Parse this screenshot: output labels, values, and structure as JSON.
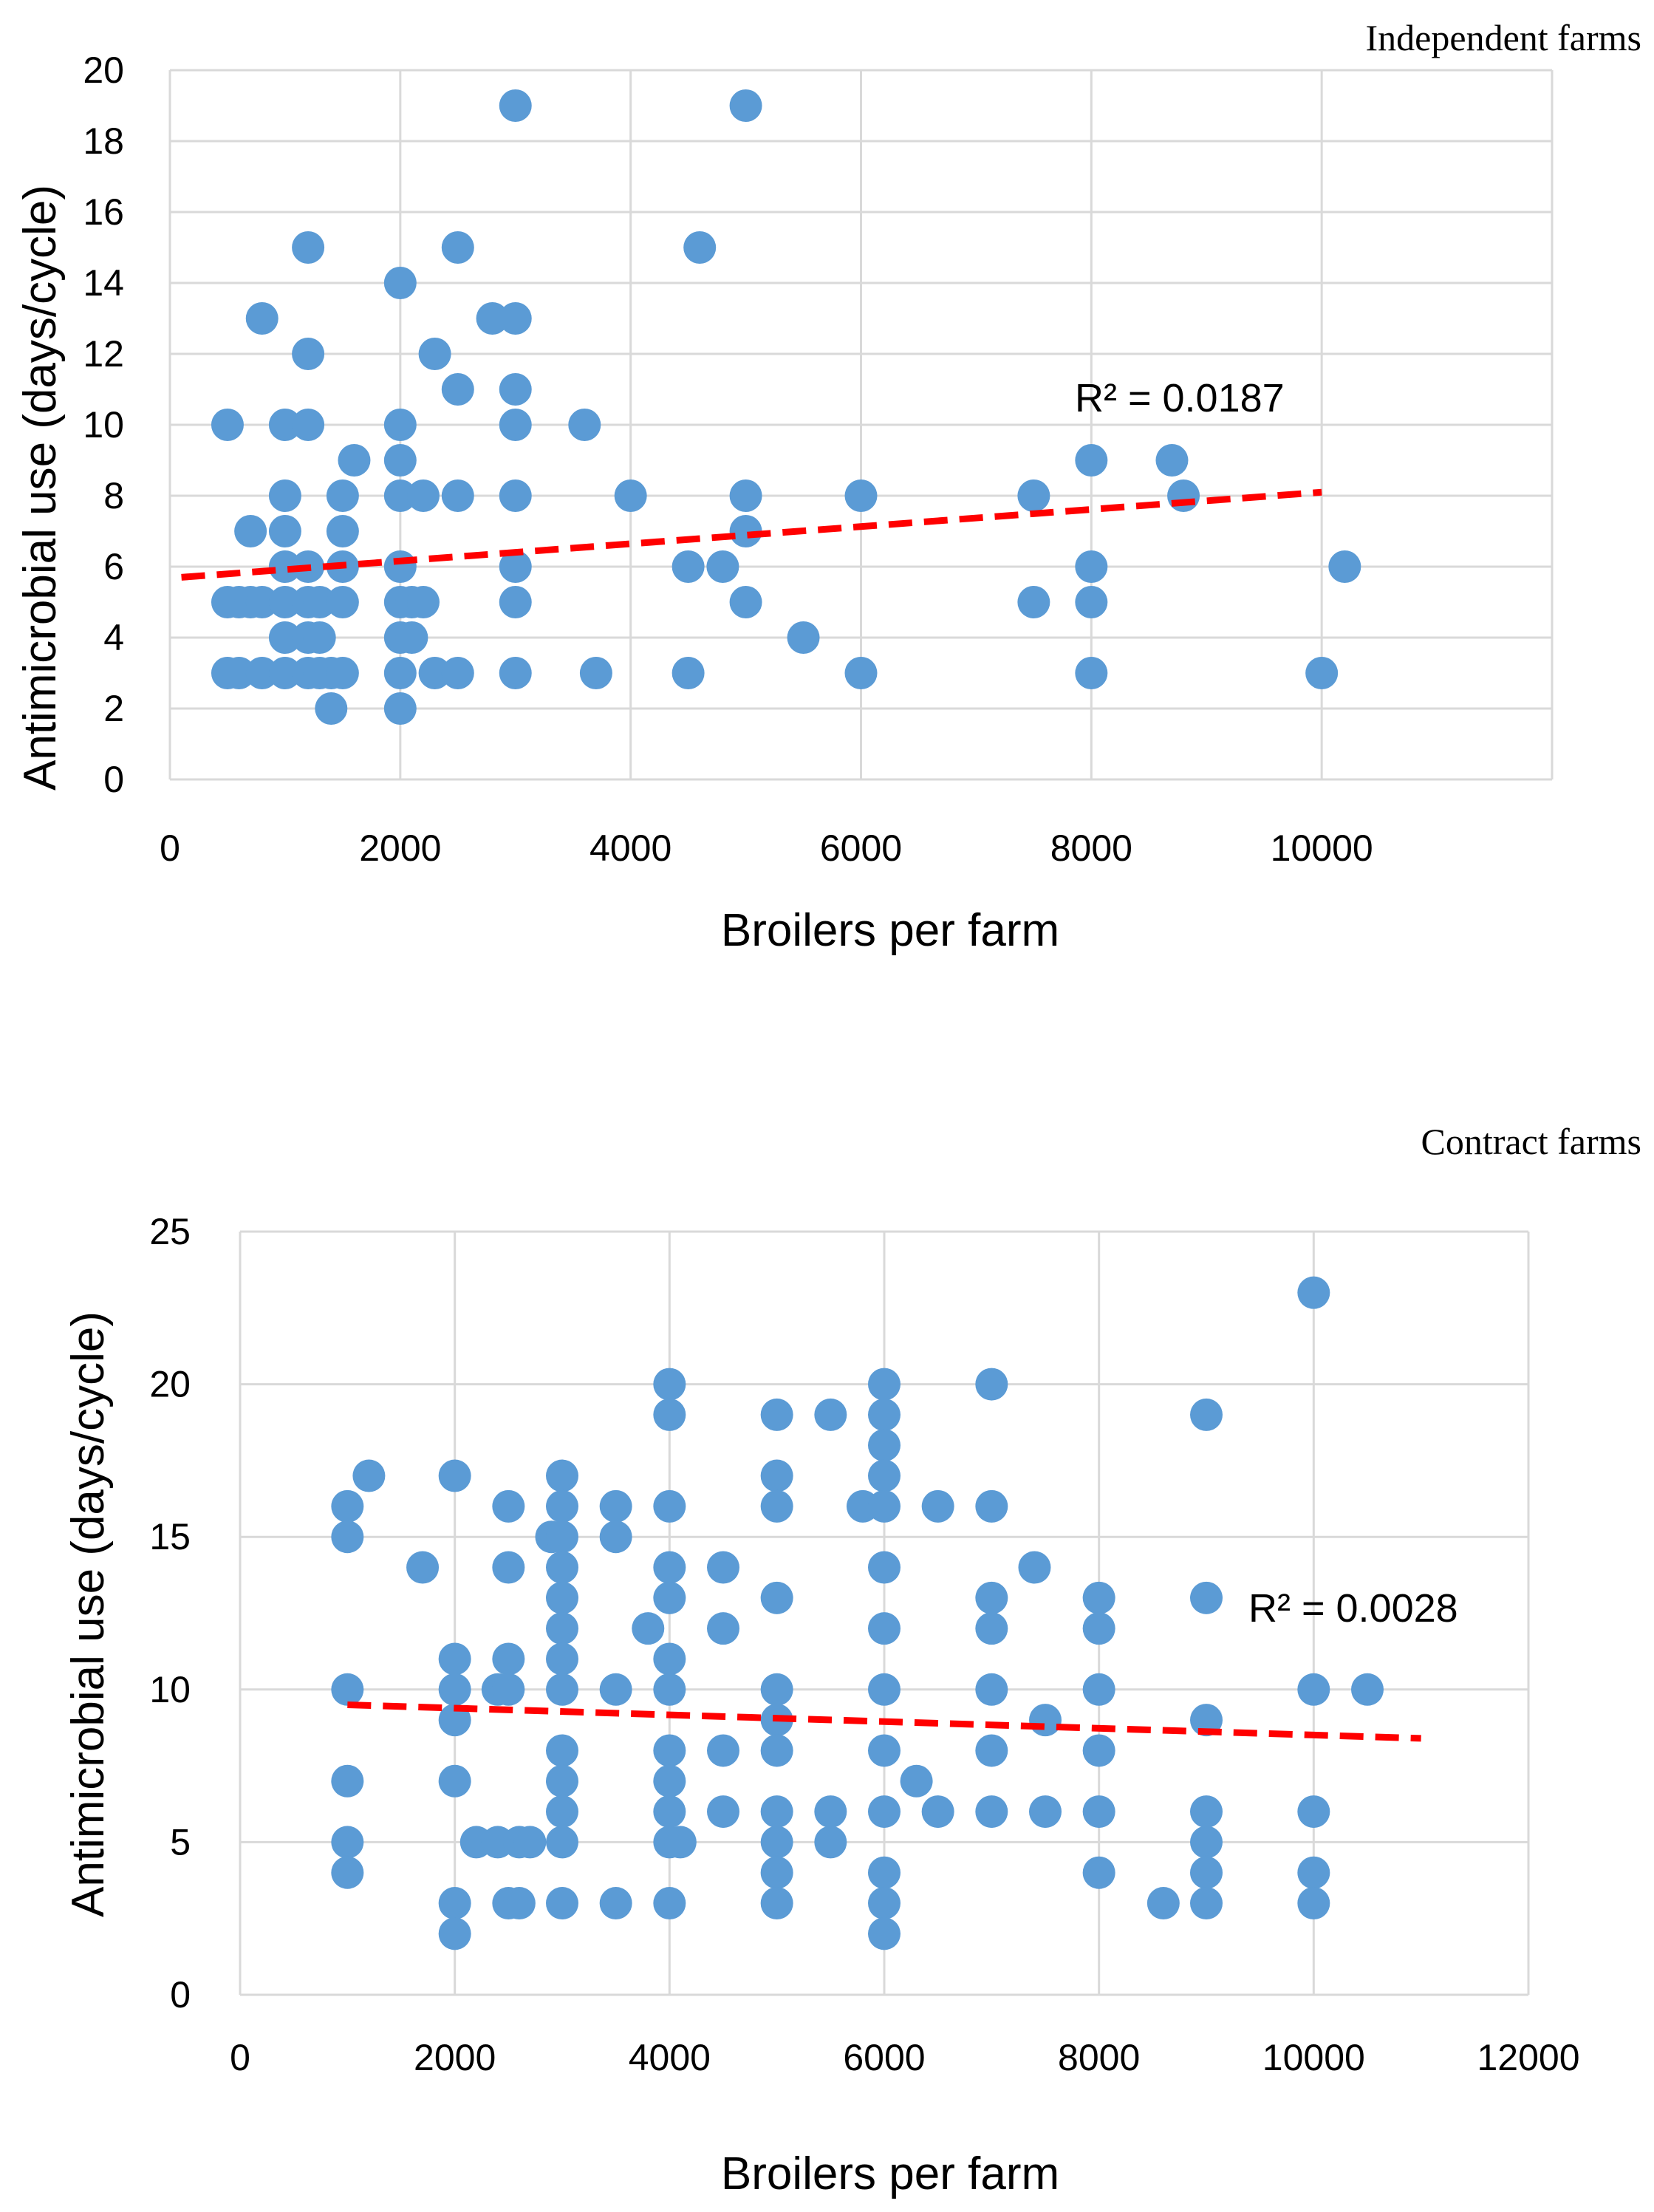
{
  "chart_data": [
    {
      "type": "scatter",
      "title": "Independent farms",
      "xlabel": "Broilers per farm",
      "ylabel": "Antimicrobial use (days/cycle)",
      "xlim": [
        0,
        12000
      ],
      "ylim": [
        0,
        20
      ],
      "xticks": [
        0,
        2000,
        4000,
        6000,
        8000,
        10000
      ],
      "yticks": [
        0,
        2,
        4,
        6,
        8,
        10,
        12,
        14,
        16,
        18,
        20
      ],
      "r2_label": "R² = 0.0187",
      "trendline": {
        "x": [
          100,
          10000
        ],
        "y": [
          5.7,
          8.1
        ],
        "color": "#ff0000"
      },
      "marker_color": "#5b9bd5",
      "points": [
        [
          500,
          10
        ],
        [
          500,
          5
        ],
        [
          500,
          3
        ],
        [
          600,
          5
        ],
        [
          600,
          3
        ],
        [
          700,
          7
        ],
        [
          700,
          5
        ],
        [
          800,
          13
        ],
        [
          800,
          5
        ],
        [
          800,
          3
        ],
        [
          1000,
          10
        ],
        [
          1000,
          8
        ],
        [
          1000,
          7
        ],
        [
          1000,
          6
        ],
        [
          1000,
          5
        ],
        [
          1000,
          4
        ],
        [
          1000,
          3
        ],
        [
          1200,
          15
        ],
        [
          1200,
          12
        ],
        [
          1200,
          10
        ],
        [
          1200,
          6
        ],
        [
          1200,
          5
        ],
        [
          1200,
          4
        ],
        [
          1200,
          3
        ],
        [
          1300,
          5
        ],
        [
          1300,
          4
        ],
        [
          1300,
          3
        ],
        [
          1400,
          2
        ],
        [
          1400,
          3
        ],
        [
          1500,
          8
        ],
        [
          1500,
          7
        ],
        [
          1500,
          6
        ],
        [
          1500,
          5
        ],
        [
          1500,
          3
        ],
        [
          1600,
          9
        ],
        [
          2000,
          14
        ],
        [
          2000,
          10
        ],
        [
          2000,
          9
        ],
        [
          2000,
          8
        ],
        [
          2000,
          6
        ],
        [
          2000,
          5
        ],
        [
          2000,
          4
        ],
        [
          2000,
          3
        ],
        [
          2000,
          2
        ],
        [
          2100,
          5
        ],
        [
          2100,
          4
        ],
        [
          2200,
          8
        ],
        [
          2200,
          5
        ],
        [
          2300,
          12
        ],
        [
          2300,
          3
        ],
        [
          2500,
          15
        ],
        [
          2500,
          11
        ],
        [
          2500,
          8
        ],
        [
          2500,
          3
        ],
        [
          2800,
          13
        ],
        [
          3000,
          19
        ],
        [
          3000,
          13
        ],
        [
          3000,
          11
        ],
        [
          3000,
          10
        ],
        [
          3000,
          8
        ],
        [
          3000,
          6
        ],
        [
          3000,
          5
        ],
        [
          3000,
          3
        ],
        [
          3600,
          10
        ],
        [
          3700,
          3
        ],
        [
          4000,
          8
        ],
        [
          4500,
          6
        ],
        [
          4500,
          3
        ],
        [
          4600,
          15
        ],
        [
          4800,
          6
        ],
        [
          5000,
          19
        ],
        [
          5000,
          8
        ],
        [
          5000,
          7
        ],
        [
          5000,
          5
        ],
        [
          5500,
          4
        ],
        [
          6000,
          8
        ],
        [
          6000,
          3
        ],
        [
          7500,
          8
        ],
        [
          7500,
          5
        ],
        [
          8000,
          9
        ],
        [
          8000,
          6
        ],
        [
          8000,
          5
        ],
        [
          8000,
          3
        ],
        [
          8700,
          9
        ],
        [
          8800,
          8
        ],
        [
          10000,
          3
        ],
        [
          10200,
          6
        ]
      ]
    },
    {
      "type": "scatter",
      "title": "Contract farms",
      "xlabel": "Broilers per farm",
      "ylabel": "Antimicrobial use (days/cycle)",
      "xlim": [
        0,
        12000
      ],
      "ylim": [
        0,
        25
      ],
      "xticks": [
        0,
        2000,
        4000,
        6000,
        8000,
        10000,
        12000
      ],
      "yticks": [
        0,
        5,
        10,
        15,
        20,
        25
      ],
      "r2_label": "R² = 0.0028",
      "trendline": {
        "x": [
          1000,
          11000
        ],
        "y": [
          9.5,
          8.4
        ],
        "color": "#ff0000"
      },
      "marker_color": "#5b9bd5",
      "points": [
        [
          1000,
          16
        ],
        [
          1000,
          15
        ],
        [
          1000,
          10
        ],
        [
          1000,
          7
        ],
        [
          1000,
          5
        ],
        [
          1000,
          4
        ],
        [
          1200,
          17
        ],
        [
          1700,
          14
        ],
        [
          2000,
          17
        ],
        [
          2000,
          11
        ],
        [
          2000,
          10
        ],
        [
          2000,
          9
        ],
        [
          2000,
          7
        ],
        [
          2000,
          3
        ],
        [
          2000,
          2
        ],
        [
          2200,
          5
        ],
        [
          2400,
          10
        ],
        [
          2400,
          5
        ],
        [
          2500,
          16
        ],
        [
          2500,
          14
        ],
        [
          2500,
          11
        ],
        [
          2500,
          10
        ],
        [
          2500,
          3
        ],
        [
          2600,
          5
        ],
        [
          2600,
          3
        ],
        [
          2700,
          5
        ],
        [
          2900,
          15
        ],
        [
          3000,
          17
        ],
        [
          3000,
          16
        ],
        [
          3000,
          15
        ],
        [
          3000,
          14
        ],
        [
          3000,
          13
        ],
        [
          3000,
          12
        ],
        [
          3000,
          11
        ],
        [
          3000,
          10
        ],
        [
          3000,
          8
        ],
        [
          3000,
          7
        ],
        [
          3000,
          6
        ],
        [
          3000,
          5
        ],
        [
          3000,
          3
        ],
        [
          3500,
          16
        ],
        [
          3500,
          15
        ],
        [
          3500,
          10
        ],
        [
          3500,
          3
        ],
        [
          3800,
          12
        ],
        [
          4000,
          20
        ],
        [
          4000,
          19
        ],
        [
          4000,
          16
        ],
        [
          4000,
          14
        ],
        [
          4000,
          13
        ],
        [
          4000,
          11
        ],
        [
          4000,
          10
        ],
        [
          4000,
          8
        ],
        [
          4000,
          7
        ],
        [
          4000,
          6
        ],
        [
          4000,
          5
        ],
        [
          4000,
          3
        ],
        [
          4100,
          5
        ],
        [
          4500,
          14
        ],
        [
          4500,
          12
        ],
        [
          4500,
          8
        ],
        [
          4500,
          6
        ],
        [
          5000,
          19
        ],
        [
          5000,
          17
        ],
        [
          5000,
          16
        ],
        [
          5000,
          13
        ],
        [
          5000,
          10
        ],
        [
          5000,
          9
        ],
        [
          5000,
          8
        ],
        [
          5000,
          6
        ],
        [
          5000,
          5
        ],
        [
          5000,
          4
        ],
        [
          5000,
          3
        ],
        [
          5500,
          19
        ],
        [
          5500,
          6
        ],
        [
          5500,
          5
        ],
        [
          5800,
          16
        ],
        [
          6000,
          20
        ],
        [
          6000,
          19
        ],
        [
          6000,
          18
        ],
        [
          6000,
          17
        ],
        [
          6000,
          16
        ],
        [
          6000,
          14
        ],
        [
          6000,
          12
        ],
        [
          6000,
          10
        ],
        [
          6000,
          8
        ],
        [
          6000,
          6
        ],
        [
          6000,
          4
        ],
        [
          6000,
          3
        ],
        [
          6000,
          2
        ],
        [
          6300,
          7
        ],
        [
          6500,
          16
        ],
        [
          6500,
          6
        ],
        [
          7000,
          20
        ],
        [
          7000,
          16
        ],
        [
          7000,
          13
        ],
        [
          7000,
          12
        ],
        [
          7000,
          10
        ],
        [
          7000,
          8
        ],
        [
          7000,
          6
        ],
        [
          7400,
          14
        ],
        [
          7500,
          9
        ],
        [
          7500,
          6
        ],
        [
          8000,
          13
        ],
        [
          8000,
          12
        ],
        [
          8000,
          10
        ],
        [
          8000,
          8
        ],
        [
          8000,
          6
        ],
        [
          8000,
          4
        ],
        [
          8600,
          3
        ],
        [
          9000,
          19
        ],
        [
          9000,
          13
        ],
        [
          9000,
          9
        ],
        [
          9000,
          6
        ],
        [
          9000,
          5
        ],
        [
          9000,
          4
        ],
        [
          9000,
          3
        ],
        [
          10000,
          23
        ],
        [
          10000,
          10
        ],
        [
          10000,
          6
        ],
        [
          10000,
          4
        ],
        [
          10000,
          3
        ],
        [
          10500,
          10
        ]
      ]
    }
  ]
}
